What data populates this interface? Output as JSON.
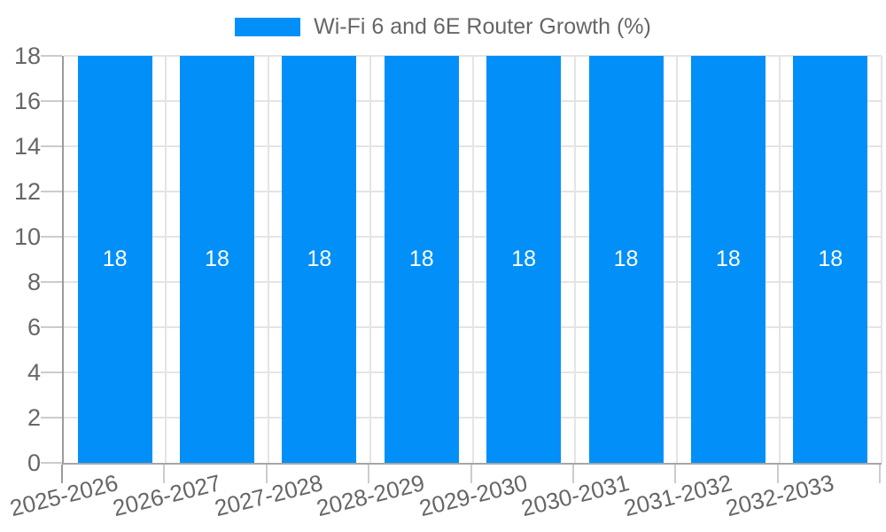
{
  "chart_data": {
    "type": "bar",
    "legend": "Wi-Fi 6 and 6E Router Growth (%)",
    "categories": [
      "2025-2026",
      "2026-2027",
      "2027-2028",
      "2028-2029",
      "2029-2030",
      "2030-2031",
      "2031-2032",
      "2032-2033"
    ],
    "values": [
      18,
      18,
      18,
      18,
      18,
      18,
      18,
      18
    ],
    "bar_labels": [
      "18",
      "18",
      "18",
      "18",
      "18",
      "18",
      "18",
      "18"
    ],
    "xlabel": "",
    "ylabel": "",
    "ylim": [
      0,
      18
    ],
    "yticks": [
      0,
      2,
      4,
      6,
      8,
      10,
      12,
      14,
      16,
      18
    ],
    "grid": "on",
    "legend_position": "top-center",
    "colors": {
      "bar": "#0290f8",
      "bar_label_text": "#ffffff",
      "gridline": "#e4e4e4",
      "tick_mark": "#cccccc",
      "axis_line": "#9b9b9b",
      "tick_text": "#666666",
      "legend_text": "#666666",
      "background": "#ffffff"
    }
  }
}
